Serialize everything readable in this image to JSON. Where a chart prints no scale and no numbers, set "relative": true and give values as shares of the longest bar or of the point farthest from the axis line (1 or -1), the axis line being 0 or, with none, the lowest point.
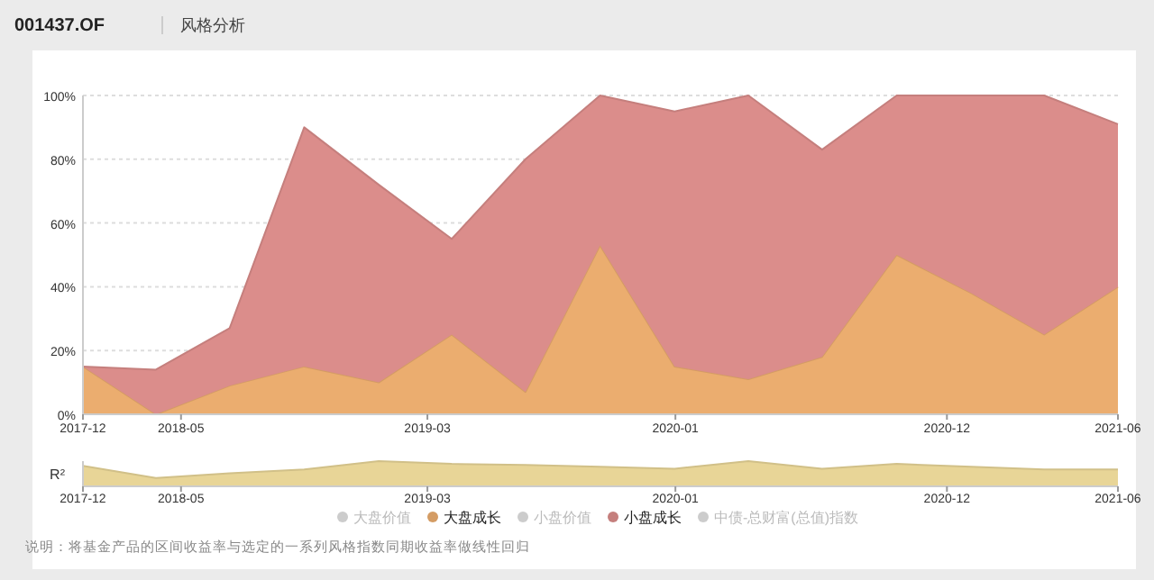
{
  "chart_data": [
    {
      "type": "area",
      "title": "001437.OF",
      "subtitle": "风格分析",
      "stacked": true,
      "grid": "y",
      "legend": "bottom",
      "x": [
        "2017-12-31",
        "2018-03-31",
        "2018-06-30",
        "2018-09-30",
        "2018-12-31",
        "2019-03-31",
        "2019-06-30",
        "2019-09-30",
        "2019-12-31",
        "2020-03-31",
        "2020-06-30",
        "2020-09-30",
        "2020-12-31",
        "2021-03-31",
        "2021-06-30"
      ],
      "xlim": [
        "2017-12-31",
        "2021-06-30"
      ],
      "xticks": [
        {
          "value": "2017-12-31",
          "label": "2017-12"
        },
        {
          "value": "2018-05-01",
          "label": "2018-05"
        },
        {
          "value": "2019-03-01",
          "label": "2019-03"
        },
        {
          "value": "2020-01-01",
          "label": "2020-01"
        },
        {
          "value": "2020-12-01",
          "label": "2020-12"
        },
        {
          "value": "2021-06-30",
          "label": "2021-06"
        }
      ],
      "ylim": [
        0,
        100
      ],
      "yticks": [
        {
          "value": 0,
          "label": "0%"
        },
        {
          "value": 20,
          "label": "20%"
        },
        {
          "value": 40,
          "label": "40%"
        },
        {
          "value": 60,
          "label": "60%"
        },
        {
          "value": 80,
          "label": "80%"
        },
        {
          "value": 100,
          "label": "100%"
        }
      ],
      "series": [
        {
          "name": "大盘价值",
          "color": "#cccccc",
          "values": [
            null,
            null,
            null,
            null,
            null,
            null,
            null,
            null,
            null,
            null,
            null,
            null,
            null,
            null,
            null
          ]
        },
        {
          "name": "大盘成长",
          "color": "#ebad6f",
          "values": [
            15,
            0,
            9,
            15,
            10,
            25,
            7,
            53,
            15,
            11,
            18,
            50,
            38,
            25,
            40
          ]
        },
        {
          "name": "小盘价值",
          "color": "#cccccc",
          "values": [
            null,
            null,
            null,
            null,
            null,
            null,
            null,
            null,
            null,
            null,
            null,
            null,
            null,
            null,
            null
          ]
        },
        {
          "name": "小盘成长",
          "color": "#db8d8b",
          "values": [
            0,
            14,
            18,
            75,
            62,
            30,
            73,
            47,
            80,
            89,
            65,
            50,
            62,
            75,
            51
          ]
        },
        {
          "name": "中债-总财富(总值)指数",
          "color": "#cccccc",
          "values": [
            null,
            null,
            null,
            null,
            null,
            null,
            null,
            null,
            null,
            null,
            null,
            null,
            null,
            null,
            null
          ]
        }
      ]
    },
    {
      "type": "area",
      "ylabel": "R²",
      "relative": true,
      "x": [
        "2017-12-31",
        "2018-03-31",
        "2018-06-30",
        "2018-09-30",
        "2018-12-31",
        "2019-03-31",
        "2019-06-30",
        "2019-09-30",
        "2019-12-31",
        "2020-03-31",
        "2020-06-30",
        "2020-09-30",
        "2020-12-31",
        "2021-03-31",
        "2021-06-30"
      ],
      "xlim": [
        "2017-12-31",
        "2021-06-30"
      ],
      "xticks": [
        {
          "value": "2017-12-31",
          "label": "2017-12"
        },
        {
          "value": "2018-05-01",
          "label": "2018-05"
        },
        {
          "value": "2019-03-01",
          "label": "2019-03"
        },
        {
          "value": "2020-01-01",
          "label": "2020-01"
        },
        {
          "value": "2020-12-01",
          "label": "2020-12"
        },
        {
          "value": "2021-06-30",
          "label": "2021-06"
        }
      ],
      "series": [
        {
          "color": "#e8d597",
          "values": [
            0.81,
            0.33,
            0.52,
            0.67,
            1,
            0.89,
            0.85,
            0.78,
            0.7,
            1,
            0.7,
            0.89,
            0.78,
            0.67,
            0.67
          ]
        }
      ],
      "annotations": [
        "说明：将基金产品的区间收益率与选定的一系列风格指数同期收益率做线性回归"
      ]
    }
  ]
}
